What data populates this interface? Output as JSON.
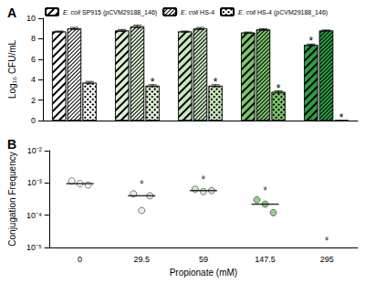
{
  "chart_data": [
    {
      "type": "bar",
      "title": "A",
      "categories": [
        0,
        29.5,
        59,
        147.5,
        295
      ],
      "ylabel": "Log₁₀ CFU/mL",
      "ylim": [
        0,
        10
      ],
      "yticks": [
        0,
        2,
        4,
        6,
        8,
        10
      ],
      "tick_labels": "y",
      "legend": "top",
      "grid": false,
      "colors": [
        "#ffffff",
        "#dff0d8",
        "#c8e6bd",
        "#7cc46e",
        "#2e9e45"
      ],
      "series": [
        {
          "name": "E. coli SP915 (pCVM29188_146)",
          "marker": "hatch",
          "values": [
            8.7,
            8.8,
            8.7,
            8.6,
            7.4
          ],
          "errors": [
            0.05,
            0.1,
            0.05,
            0.05,
            0.08
          ],
          "annotations": [
            null,
            null,
            null,
            null,
            "*"
          ]
        },
        {
          "name": "E. coli HS-4",
          "marker": "dense_hatch",
          "values": [
            9.0,
            9.2,
            9.0,
            8.9,
            8.8
          ],
          "errors": [
            0.1,
            0.12,
            0.1,
            0.08,
            0.05
          ],
          "annotations": [
            null,
            null,
            null,
            null,
            null
          ]
        },
        {
          "name": "E. coli HS-4 (pCVM29188_146)",
          "marker": "crosshatch",
          "values": [
            3.7,
            3.4,
            3.4,
            2.8,
            0
          ],
          "errors": [
            0.12,
            0.1,
            0.1,
            0.1,
            0
          ],
          "annotations": [
            null,
            "*",
            "*",
            "*",
            "*"
          ]
        }
      ]
    },
    {
      "type": "scatter",
      "title": "B",
      "categories": [
        0,
        29.5,
        59,
        147.5,
        295
      ],
      "xlabel": "Propionate (mM)",
      "ylabel": "Conjugation Frequency",
      "log": "y",
      "ylim": [
        1e-05,
        0.01
      ],
      "yticks": [
        {
          "value": 1e-05,
          "label": "10⁻⁵"
        },
        {
          "value": 0.0001,
          "label": "10⁻⁴"
        },
        {
          "value": 0.001,
          "label": "10⁻³"
        },
        {
          "value": 0.01,
          "label": "10⁻²"
        }
      ],
      "grid": false,
      "colors": [
        "#ffffff",
        "#dff0d8",
        "#c8e6bd",
        "#7cc46e",
        "#2e9e45"
      ],
      "series": [
        {
          "values": [
            [
              0.00115,
              0.00095,
              0.00086
            ],
            [
              0.00046,
              0.00014,
              0.0004
            ],
            [
              0.00064,
              0.00054,
              0.00058
            ],
            [
              0.0003,
              0.00022,
              0.00012
            ],
            []
          ],
          "medians": [
            0.00095,
            0.0004,
            0.00058,
            0.00022,
            null
          ],
          "annotations": [
            null,
            "*",
            "*",
            "*",
            "*"
          ]
        }
      ]
    }
  ]
}
